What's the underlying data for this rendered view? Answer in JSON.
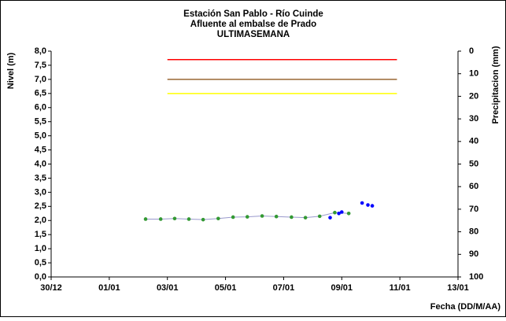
{
  "chart_data": {
    "type": "line",
    "title": "Estación San Pablo - Río Cuinde",
    "subtitle": "Afluente al embalse de Prado",
    "subtitle2": "ULTIMASEMANA",
    "y_label": "Nivel (m)",
    "y2_label": "Precipitacion (mm)",
    "x_label": "Fecha (DD/M/AA)",
    "xlim": [
      0,
      14
    ],
    "xticks": [
      {
        "value": 0,
        "label": "30/12"
      },
      {
        "value": 2,
        "label": "01/01"
      },
      {
        "value": 4,
        "label": "03/01"
      },
      {
        "value": 6,
        "label": "05/01"
      },
      {
        "value": 8,
        "label": "07/01"
      },
      {
        "value": 10,
        "label": "09/01"
      },
      {
        "value": 12,
        "label": "11/01"
      },
      {
        "value": 14,
        "label": "13/01"
      }
    ],
    "ylim": [
      0,
      8
    ],
    "yticks": [
      {
        "value": 0,
        "label": "0,0"
      },
      {
        "value": 0.5,
        "label": "0,5"
      },
      {
        "value": 1,
        "label": "1,0"
      },
      {
        "value": 1.5,
        "label": "1,5"
      },
      {
        "value": 2,
        "label": "2,0"
      },
      {
        "value": 2.5,
        "label": "2,5"
      },
      {
        "value": 3,
        "label": "3,0"
      },
      {
        "value": 3.5,
        "label": "3,5"
      },
      {
        "value": 4,
        "label": "4,0"
      },
      {
        "value": 4.5,
        "label": "4,5"
      },
      {
        "value": 5,
        "label": "5,0"
      },
      {
        "value": 5.5,
        "label": "5,5"
      },
      {
        "value": 6,
        "label": "6,0"
      },
      {
        "value": 6.5,
        "label": "6,5"
      },
      {
        "value": 7,
        "label": "7,0"
      },
      {
        "value": 7.5,
        "label": "7,5"
      },
      {
        "value": 8,
        "label": "8,0"
      }
    ],
    "y2lim": [
      0,
      100
    ],
    "y2_reversed": true,
    "y2ticks": [
      0,
      10,
      20,
      30,
      40,
      50,
      60,
      70,
      80,
      90,
      100
    ],
    "series": [
      {
        "color": "#ff0000",
        "style": "line",
        "x": [
          4,
          11.9
        ],
        "values": [
          7.7,
          7.7
        ]
      },
      {
        "color": "#996633",
        "style": "line",
        "x": [
          4,
          11.9
        ],
        "values": [
          7.0,
          7.0
        ]
      },
      {
        "color": "#ffff00",
        "style": "line",
        "x": [
          4,
          11.9
        ],
        "values": [
          6.5,
          6.5
        ]
      },
      {
        "color": "#339933",
        "line_color": "#9999cc",
        "style": "line-markers",
        "x": [
          3.25,
          3.77,
          4.25,
          4.74,
          5.23,
          5.75,
          6.26,
          6.75,
          7.26,
          7.75,
          8.27,
          8.75,
          9.24,
          9.76,
          10.24
        ],
        "values": [
          2.05,
          2.05,
          2.07,
          2.05,
          2.03,
          2.07,
          2.12,
          2.13,
          2.16,
          2.14,
          2.12,
          2.1,
          2.15,
          2.28,
          2.25
        ]
      },
      {
        "color": "#0000ff",
        "style": "markers",
        "x": [
          9.6,
          9.9,
          10.0,
          10.7,
          10.9,
          11.05
        ],
        "values": [
          2.1,
          2.25,
          2.3,
          2.62,
          2.55,
          2.52
        ]
      }
    ]
  }
}
